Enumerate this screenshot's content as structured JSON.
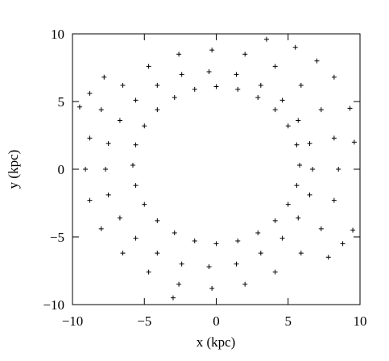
{
  "chart_data": {
    "type": "scatter",
    "xlabel": "x (kpc)",
    "ylabel": "y (kpc)",
    "color": "#000000",
    "marker": "+",
    "xlim": [
      -10,
      10
    ],
    "ylim": [
      -10,
      10
    ],
    "xticks": [
      {
        "value": -10,
        "label": "−10"
      },
      {
        "value": -5,
        "label": "−5"
      },
      0,
      5,
      10
    ],
    "yticks": [
      {
        "value": -10,
        "label": "−10"
      },
      {
        "value": -5,
        "label": "−5"
      },
      0,
      5,
      10
    ],
    "x": [
      8.5,
      8.2,
      7.3,
      5.9,
      4.1,
      2,
      -0.3,
      -2.6,
      -4.7,
      -6.5,
      -8,
      -8.8,
      -9.1,
      -8.8,
      -8,
      -6.5,
      -4.7,
      -2.6,
      -0.3,
      2,
      4.1,
      5.9,
      7.3,
      8.2,
      6.7,
      6.5,
      5.7,
      4.6,
      3.1,
      1.4,
      -0.5,
      -2.4,
      -4.1,
      -5.6,
      -6.7,
      -7.5,
      -7.7,
      -7.5,
      -6.7,
      -5.6,
      -4.1,
      -2.4,
      -0.5,
      1.4,
      3.1,
      4.6,
      5.7,
      6.5,
      5.8,
      5.6,
      5,
      4.1,
      2.9,
      1.5,
      0,
      -1.5,
      -2.9,
      -4.1,
      -5,
      -5.6,
      -5.8,
      -5.6,
      -5,
      -4.1,
      -2.9,
      -1.5,
      0,
      1.5,
      2.9,
      4.1,
      5,
      5.6,
      -9.5,
      -8.8,
      -7.8,
      3.5,
      5.5,
      7,
      8.2,
      9.3,
      9.6,
      9.5,
      8.8,
      7.8,
      -3
    ],
    "values": [
      0,
      2.3,
      4.4,
      6.2,
      7.6,
      8.5,
      8.8,
      8.5,
      7.6,
      6.2,
      4.4,
      2.3,
      0,
      -2.3,
      -4.4,
      -6.2,
      -7.6,
      -8.5,
      -8.8,
      -8.5,
      -7.6,
      -6.2,
      -4.4,
      -2.3,
      0,
      1.9,
      3.6,
      5.1,
      6.2,
      7,
      7.2,
      7,
      6.2,
      5.1,
      3.6,
      1.9,
      0,
      -1.9,
      -3.6,
      -5.1,
      -6.2,
      -7,
      -7.2,
      -7,
      -6.2,
      -5.1,
      -3.6,
      -1.9,
      0.3,
      1.8,
      3.2,
      4.4,
      5.3,
      5.9,
      6.1,
      5.9,
      5.3,
      4.4,
      3.2,
      1.8,
      0.3,
      -1.2,
      -2.6,
      -3.8,
      -4.7,
      -5.3,
      -5.5,
      -5.3,
      -4.7,
      -3.8,
      -2.6,
      -1.2,
      4.6,
      5.6,
      6.8,
      9.6,
      9,
      8,
      6.8,
      4.5,
      2,
      -4.5,
      -5.5,
      -6.5,
      -9.5
    ]
  }
}
